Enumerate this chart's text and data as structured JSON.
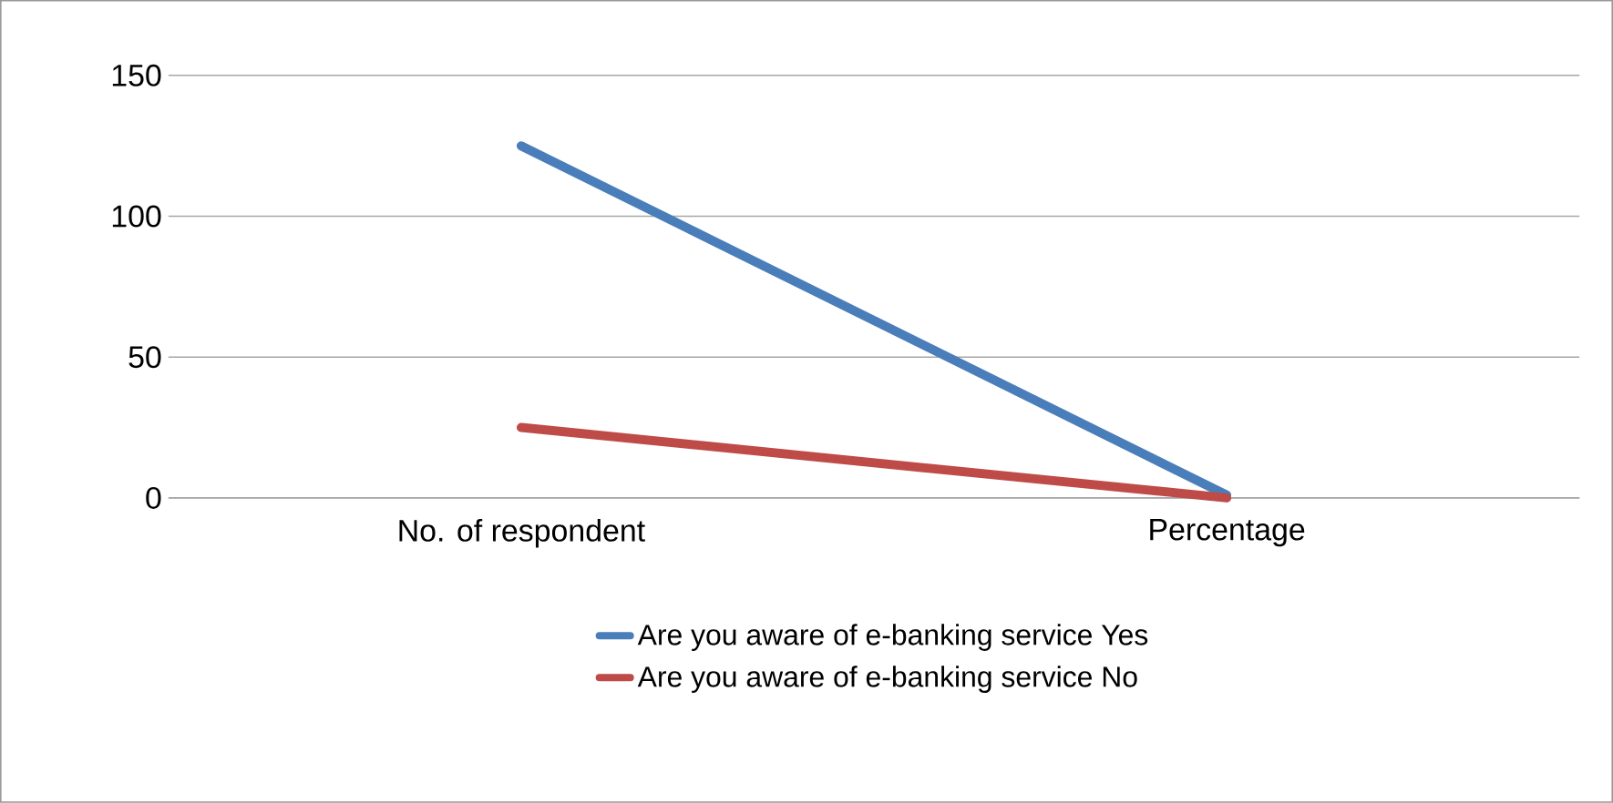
{
  "chart_data": {
    "type": "line",
    "categories": [
      "No. of respondent",
      "Percentage"
    ],
    "series": [
      {
        "name": "Are you aware of e-banking service Yes",
        "color": "#4a7ebb",
        "values": [
          125,
          1
        ]
      },
      {
        "name": "Are you aware of e-banking service No",
        "color": "#be4b48",
        "values": [
          25,
          0
        ]
      }
    ],
    "ylim": [
      0,
      150
    ],
    "yticks": [
      0,
      50,
      100,
      150
    ],
    "grid": "y",
    "legend": "bottom"
  }
}
